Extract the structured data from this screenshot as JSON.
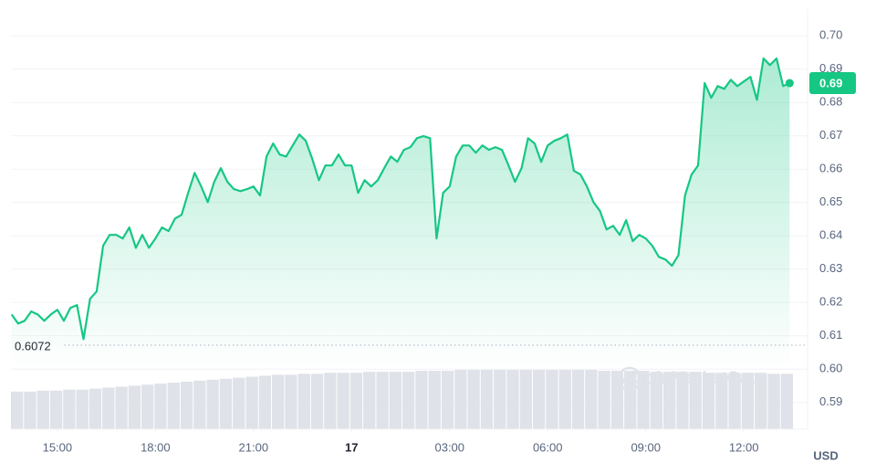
{
  "chart_data": {
    "type": "area",
    "watermark": "CoinMarketCap",
    "unit": "USD",
    "xlim": [
      13.58,
      37.53
    ],
    "xticks": [
      {
        "value": 15,
        "label": "15:00"
      },
      {
        "value": 18,
        "label": "18:00"
      },
      {
        "value": 21,
        "label": "21:00"
      },
      {
        "value": 24,
        "label": "17"
      },
      {
        "value": 27,
        "label": "03:00"
      },
      {
        "value": 30,
        "label": "06:00"
      },
      {
        "value": 33,
        "label": "09:00"
      },
      {
        "value": 36,
        "label": "12:00"
      }
    ],
    "ylim": [
      0.582,
      0.708
    ],
    "yticks": [
      0.59,
      {
        "value": 0.6,
        "label": "0.60"
      },
      0.61,
      0.62,
      0.63,
      0.64,
      0.65,
      0.66,
      0.67,
      0.68,
      0.69,
      {
        "value": 0.7,
        "label": "0.70"
      }
    ],
    "grid": true,
    "reference": 0.6072,
    "current_price": {
      "value": 0.6858,
      "label": "0.69"
    },
    "x": [
      13.6,
      13.8,
      14,
      14.2,
      14.4,
      14.6,
      14.8,
      15,
      15.2,
      15.4,
      15.6,
      15.8,
      16,
      16.2,
      16.4,
      16.6,
      16.8,
      17,
      17.2,
      17.4,
      17.6,
      17.8,
      18,
      18.2,
      18.4,
      18.6,
      18.8,
      19,
      19.2,
      19.4,
      19.6,
      19.8,
      20,
      20.2,
      20.4,
      20.6,
      20.8,
      21,
      21.2,
      21.4,
      21.6,
      21.8,
      22,
      22.2,
      22.4,
      22.6,
      22.8,
      23,
      23.2,
      23.4,
      23.6,
      23.8,
      24,
      24.2,
      24.4,
      24.6,
      24.8,
      25,
      25.2,
      25.4,
      25.6,
      25.8,
      26,
      26.2,
      26.4,
      26.6,
      26.8,
      27,
      27.2,
      27.4,
      27.6,
      27.8,
      28,
      28.2,
      28.4,
      28.6,
      28.8,
      29,
      29.2,
      29.4,
      29.6,
      29.8,
      30,
      30.2,
      30.4,
      30.6,
      30.8,
      31,
      31.2,
      31.4,
      31.6,
      31.8,
      32,
      32.2,
      32.4,
      32.6,
      32.8,
      33,
      33.2,
      33.4,
      33.6,
      33.8,
      34,
      34.2,
      34.4,
      34.6,
      34.8,
      35,
      35.2,
      35.4,
      35.6,
      35.8,
      36,
      36.2,
      36.4,
      36.6,
      36.8,
      37,
      37.2,
      37.4
    ],
    "series": [
      {
        "color": "#16c784",
        "values": [
          0.6164,
          0.6137,
          0.6145,
          0.6173,
          0.6164,
          0.6145,
          0.6164,
          0.6178,
          0.6145,
          0.6184,
          0.6192,
          0.609,
          0.6211,
          0.6233,
          0.637,
          0.6403,
          0.6403,
          0.6392,
          0.6425,
          0.6364,
          0.6403,
          0.6364,
          0.6392,
          0.6425,
          0.6414,
          0.6452,
          0.6463,
          0.6529,
          0.6589,
          0.6548,
          0.6501,
          0.6562,
          0.6603,
          0.6562,
          0.654,
          0.6534,
          0.654,
          0.6548,
          0.6521,
          0.6638,
          0.6677,
          0.6644,
          0.6638,
          0.6671,
          0.6704,
          0.6685,
          0.663,
          0.6567,
          0.6611,
          0.6611,
          0.6644,
          0.6611,
          0.6611,
          0.6529,
          0.6567,
          0.6548,
          0.6567,
          0.6603,
          0.6638,
          0.6622,
          0.6658,
          0.6666,
          0.6693,
          0.6699,
          0.6693,
          0.6392,
          0.6529,
          0.6548,
          0.6638,
          0.6671,
          0.6671,
          0.6649,
          0.6671,
          0.6658,
          0.6666,
          0.6658,
          0.6611,
          0.6562,
          0.6603,
          0.6693,
          0.6677,
          0.6622,
          0.6671,
          0.6685,
          0.6693,
          0.6704,
          0.6595,
          0.6584,
          0.6548,
          0.6501,
          0.6474,
          0.6419,
          0.643,
          0.6403,
          0.6447,
          0.6384,
          0.6403,
          0.6392,
          0.637,
          0.6337,
          0.6329,
          0.631,
          0.6342,
          0.6521,
          0.6584,
          0.6611,
          0.6858,
          0.6814,
          0.6849,
          0.6841,
          0.6868,
          0.6849,
          0.6863,
          0.6877,
          0.6808,
          0.6932,
          0.6912,
          0.6932,
          0.6849,
          0.6858
        ]
      }
    ],
    "volume": {
      "color": "#dfe2e8",
      "values": [
        38,
        38,
        39,
        39,
        40,
        40,
        41,
        42,
        43,
        44,
        45,
        46,
        47,
        48,
        49,
        50,
        51,
        52,
        53,
        54,
        55,
        55,
        56,
        56,
        57,
        57,
        57,
        58,
        58,
        58,
        58,
        59,
        59,
        59,
        60,
        60,
        60,
        60,
        60,
        60,
        60,
        60,
        60,
        60,
        60,
        59,
        59,
        59,
        59,
        58,
        58,
        58,
        58,
        57,
        57,
        57,
        57,
        57,
        56,
        56
      ]
    }
  }
}
